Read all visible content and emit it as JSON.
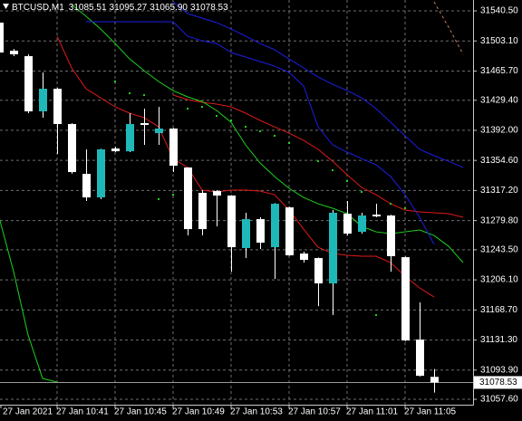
{
  "chart_data": {
    "type": "candlestick",
    "symbol": "BTCUSD,M1",
    "header_values": [
      "31085.51",
      "31095.27",
      "31065.90",
      "31078.53"
    ],
    "categories": [
      "27 Jan 2021",
      null,
      null,
      null,
      "27 Jan 10:41",
      null,
      null,
      null,
      "27 Jan 10:45",
      null,
      null,
      null,
      "27 Jan 10:49",
      null,
      null,
      null,
      "27 Jan 10:53",
      null,
      null,
      null,
      "27 Jan 10:57",
      null,
      null,
      null,
      "27 Jan 11:01",
      null,
      null,
      null,
      "27 Jan 11:05",
      null,
      null,
      null,
      null
    ],
    "ohlc": {
      "open": [
        31525.9,
        31491.0,
        31484.2,
        31415.6,
        31443.7,
        31399.8,
        31337.9,
        31308.6,
        31369.4,
        31366.0,
        31400.9,
        31388.5,
        31394.2,
        31345.8,
        31314.2,
        31316.5,
        31310.9,
        31245.6,
        31281.6,
        31246.7,
        31296.2,
        31238.8,
        31233.2,
        31201.7,
        31288.4,
        31265.8,
        31287.2,
        31286.1,
        31234.3,
        31131.9,
        31085.51,
        null,
        null
      ],
      "high": [
        31531.5,
        31493.2,
        31486.5,
        31464.0,
        31445.0,
        31401.0,
        31368.3,
        31369.0,
        31371.7,
        31413.3,
        31418.9,
        31421.2,
        31395.0,
        31346.0,
        31317.6,
        31317.6,
        31311.5,
        31289.5,
        31283.9,
        31301.5,
        31297.0,
        31241.1,
        31234.0,
        31292.9,
        31304.1,
        31289.5,
        31300.7,
        31287.0,
        31235.0,
        31178.1,
        31095.27,
        null,
        null
      ],
      "low": [
        31486.5,
        31484.2,
        31413.3,
        31407.7,
        31362.6,
        31338.0,
        31304.1,
        31306.4,
        31364.9,
        31364.9,
        31373.9,
        31373.9,
        31340.1,
        31261.3,
        31261.3,
        31272.6,
        31216.3,
        31233.2,
        31244.5,
        31207.3,
        31236.0,
        31227.6,
        31173.5,
        31162.3,
        31261.3,
        31263.6,
        31284.0,
        31216.3,
        31130.0,
        31086.0,
        31065.9,
        null,
        null
      ],
      "close": [
        31488.7,
        31486.5,
        31415.6,
        31443.7,
        31399.8,
        31340.1,
        31308.6,
        31368.3,
        31366.0,
        31399.8,
        31398.7,
        31394.2,
        31348.0,
        31269.2,
        31269.2,
        31310.9,
        31246.7,
        31281.6,
        31252.3,
        31300.7,
        31236.6,
        31231.0,
        31201.7,
        31289.5,
        31263.6,
        31286.1,
        31285.0,
        31235.5,
        31130.8,
        31086.9,
        31078.53,
        null,
        null
      ]
    },
    "bull_color": "#1fb8b8",
    "bear_color": "#ffffff",
    "series": [
      {
        "style": "line",
        "color": "#e01a1a",
        "values": [
          null,
          null,
          null,
          null,
          31509.0,
          31469.6,
          31443.7,
          31432.4,
          31421.2,
          31413.3,
          31407.7,
          31396.4,
          31357.0,
          31345.8,
          31317.6,
          31315.4,
          31317.6,
          31317.6,
          31316.5,
          31312.0,
          31292.9,
          31269.2,
          31246.7,
          31238.8,
          31236.6,
          31235.5,
          31235.5,
          31227.6,
          31210.7,
          31196.1,
          31184.8,
          null,
          null
        ]
      },
      {
        "style": "line",
        "color": "#e01a1a",
        "values": [
          null,
          null,
          null,
          null,
          null,
          null,
          null,
          null,
          null,
          null,
          null,
          null,
          31435.8,
          31430.2,
          31426.8,
          31424.6,
          31421.2,
          31413.3,
          31404.3,
          31396.4,
          31388.5,
          31379.5,
          31368.3,
          31353.6,
          31336.8,
          31321.0,
          31312.0,
          31300.7,
          31292.9,
          31290.6,
          31289.5,
          31288.4,
          31283.9
        ]
      },
      {
        "style": "line",
        "color": "#1ed21e",
        "values": [
          null,
          null,
          null,
          null,
          null,
          31548.4,
          31533.7,
          31518.0,
          31500.0,
          31480.8,
          31466.2,
          31452.7,
          31441.4,
          31433.6,
          31427.9,
          31416.7,
          31402.0,
          31373.9,
          31351.4,
          31334.5,
          31319.9,
          31308.6,
          31300.7,
          31295.1,
          31288.4,
          31272.6,
          31265.8,
          31263.6,
          31265.8,
          31268.1,
          31261.3,
          31247.8,
          31227.6
        ]
      },
      {
        "style": "line",
        "color": "#1ed21e",
        "values": [
          31283.9,
          31216.3,
          31137.5,
          31083.5,
          31079.0,
          null,
          null,
          null,
          null,
          null,
          null,
          null,
          null,
          null,
          null,
          null,
          null,
          null,
          null,
          null,
          null,
          null,
          null,
          null,
          null,
          null,
          null,
          null,
          null,
          null,
          null,
          null,
          null
        ]
      },
      {
        "style": "line",
        "color": "#1e1ee6",
        "values": [
          null,
          null,
          null,
          null,
          null,
          null,
          31527.0,
          31527.0,
          31527.0,
          31527.0,
          31527.0,
          31527.0,
          31527.0,
          31509.0,
          31503.3,
          31500.0,
          31488.7,
          31483.1,
          31477.5,
          31471.8,
          31464.0,
          31447.1,
          31396.4,
          31373.9,
          31364.9,
          31357.0,
          31349.1,
          31334.5,
          31312.0,
          31283.9,
          31250.1,
          null,
          null
        ]
      },
      {
        "style": "line",
        "color": "#1e1ee6",
        "values": [
          null,
          null,
          null,
          null,
          null,
          null,
          null,
          null,
          null,
          null,
          null,
          null,
          31551.7,
          31537.1,
          31531.5,
          31525.9,
          31518.0,
          31509.0,
          31500.0,
          31492.1,
          31480.8,
          31469.6,
          31458.3,
          31449.3,
          31441.4,
          31432.4,
          31418.9,
          31402.0,
          31385.2,
          31368.3,
          31360.4,
          31353.6,
          31345.8
        ]
      },
      {
        "style": "dashed",
        "color": "#c87850",
        "values": [
          null,
          null,
          null,
          null,
          null,
          null,
          null,
          null,
          null,
          null,
          null,
          null,
          null,
          null,
          null,
          null,
          null,
          null,
          null,
          null,
          null,
          null,
          null,
          null,
          null,
          null,
          null,
          null,
          null,
          null,
          31551.7,
          31520.2,
          31486.5
        ]
      },
      {
        "style": "dots",
        "color": "#1ed21e",
        "values": [
          null,
          null,
          null,
          null,
          null,
          null,
          null,
          null,
          31452.7,
          31438.1,
          31435.8,
          31306.4,
          31312.0,
          31418.9,
          31421.2,
          31409.9,
          31404.3,
          31396.4,
          31390.8,
          31385.2,
          31376.2,
          null,
          31353.6,
          31342.4,
          31328.9,
          31315.4,
          31162.3,
          31300.7,
          31295.1,
          null,
          null,
          null,
          null
        ]
      }
    ],
    "current_price": 31078.53,
    "ylim": [
      31050.9,
      31554.0
    ],
    "yticks": [
      {
        "value": 31540.5,
        "label": "31540.50"
      },
      {
        "value": 31503.1,
        "label": "31503.10"
      },
      {
        "value": 31465.7,
        "label": "31465.70"
      },
      {
        "value": 31429.4,
        "label": "31429.40"
      },
      {
        "value": 31392.0,
        "label": "31392.00"
      },
      {
        "value": 31354.6,
        "label": "31354.60"
      },
      {
        "value": 31317.2,
        "label": "31317.20"
      },
      {
        "value": 31279.8,
        "label": "31279.80"
      },
      {
        "value": 31243.5,
        "label": "31243.50"
      },
      {
        "value": 31206.1,
        "label": "31206.10"
      },
      {
        "value": 31168.7,
        "label": "31168.70"
      },
      {
        "value": 31131.3,
        "label": "31131.30"
      },
      {
        "value": 31093.9,
        "label": "31093.90"
      },
      {
        "value": 31057.6,
        "label": "31057.60"
      }
    ],
    "grid": true
  }
}
